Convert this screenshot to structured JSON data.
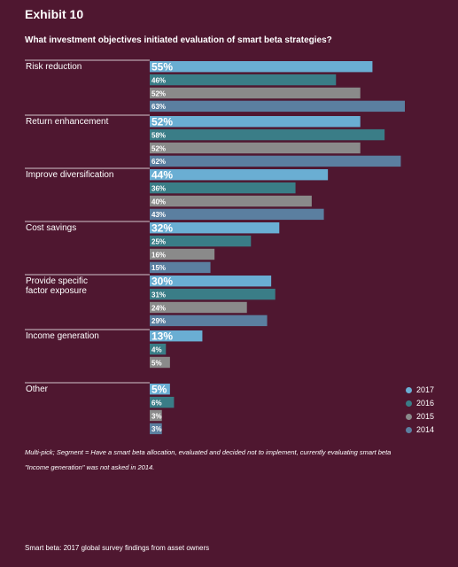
{
  "exhibit_label": "Exhibit 10",
  "footer": "Smart beta: 2017 global survey findings from asset owners",
  "notes": [
    "Multi-pick; Segment = Have a smart beta allocation, evaluated and decided not to implement, currently evaluating smart beta",
    "\"Income generation\" was not asked in 2014."
  ],
  "chart_data": {
    "type": "bar",
    "orientation": "horizontal",
    "title": "What investment objectives initiated evaluation of smart beta strategies?",
    "unit": "%",
    "categories": [
      [
        "Risk reduction"
      ],
      [
        "Return enhancement"
      ],
      [
        "Improve diversification"
      ],
      [
        "Cost savings"
      ],
      [
        "Provide specific",
        "factor exposure"
      ],
      [
        "Income generation"
      ],
      [
        "Other"
      ]
    ],
    "series": [
      {
        "name": "2017",
        "color": "#6aaed3",
        "values": [
          55,
          52,
          44,
          32,
          30,
          13,
          5
        ]
      },
      {
        "name": "2016",
        "color": "#3a7d87",
        "values": [
          46,
          58,
          36,
          25,
          31,
          4,
          6
        ]
      },
      {
        "name": "2015",
        "color": "#8a8a8a",
        "values": [
          52,
          52,
          40,
          16,
          24,
          5,
          3
        ]
      },
      {
        "name": "2014",
        "color": "#5b7fa0",
        "values": [
          63,
          62,
          43,
          15,
          29,
          null,
          3
        ]
      }
    ],
    "xlim": [
      0,
      63
    ],
    "legend_position": "right"
  }
}
